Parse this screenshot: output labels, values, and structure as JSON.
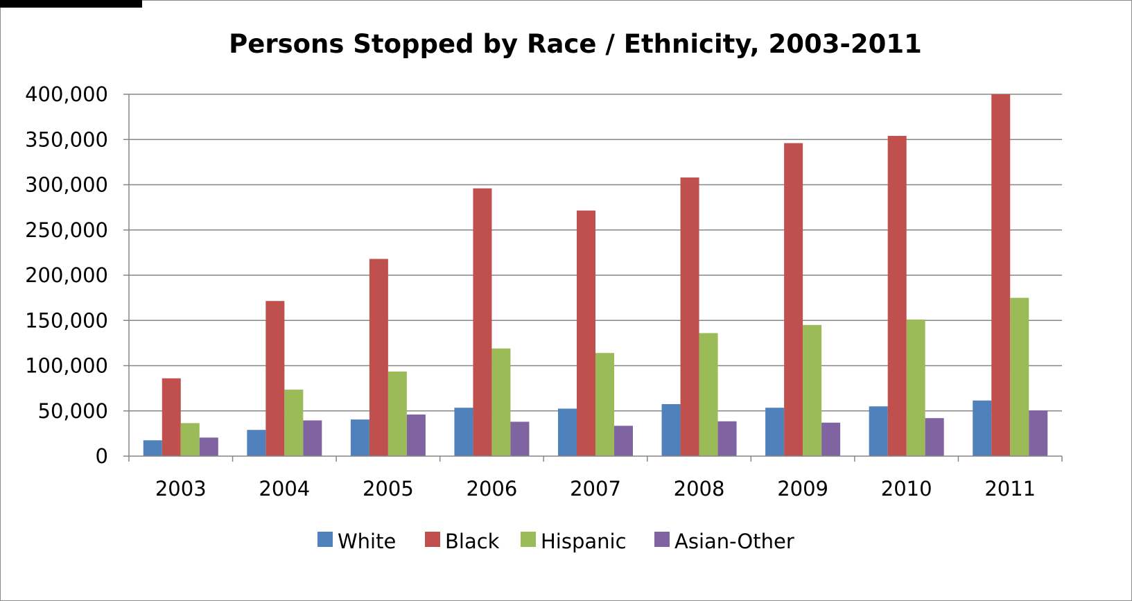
{
  "chart_data": {
    "type": "bar",
    "title": "Persons Stopped by Race / Ethnicity, 2003-2011",
    "xlabel": "",
    "ylabel": "",
    "categories": [
      "2003",
      "2004",
      "2005",
      "2006",
      "2007",
      "2008",
      "2009",
      "2010",
      "2011"
    ],
    "series": [
      {
        "name": "White",
        "color": "#4f81bd",
        "values": [
          17500,
          29000,
          40500,
          53500,
          52500,
          57500,
          53500,
          55000,
          61500
        ]
      },
      {
        "name": "Black",
        "color": "#c0504d",
        "values": [
          86000,
          171500,
          218000,
          296000,
          271500,
          308000,
          346000,
          354000,
          400000
        ]
      },
      {
        "name": "Hispanic",
        "color": "#9bbb59",
        "values": [
          36500,
          73500,
          93500,
          119000,
          114000,
          136000,
          145000,
          151000,
          175000
        ]
      },
      {
        "name": "Asian-Other",
        "color": "#8064a2",
        "values": [
          20500,
          39500,
          46000,
          38000,
          33500,
          38500,
          37000,
          42000,
          50500
        ]
      }
    ],
    "ylim": [
      0,
      400000
    ],
    "y_ticks": [
      0,
      50000,
      100000,
      150000,
      200000,
      250000,
      300000,
      350000,
      400000
    ],
    "y_tick_labels": [
      "0",
      "50,000",
      "100,000",
      "150,000",
      "200,000",
      "250,000",
      "300,000",
      "350,000",
      "400,000"
    ],
    "grid": true,
    "legend_position": "bottom"
  }
}
